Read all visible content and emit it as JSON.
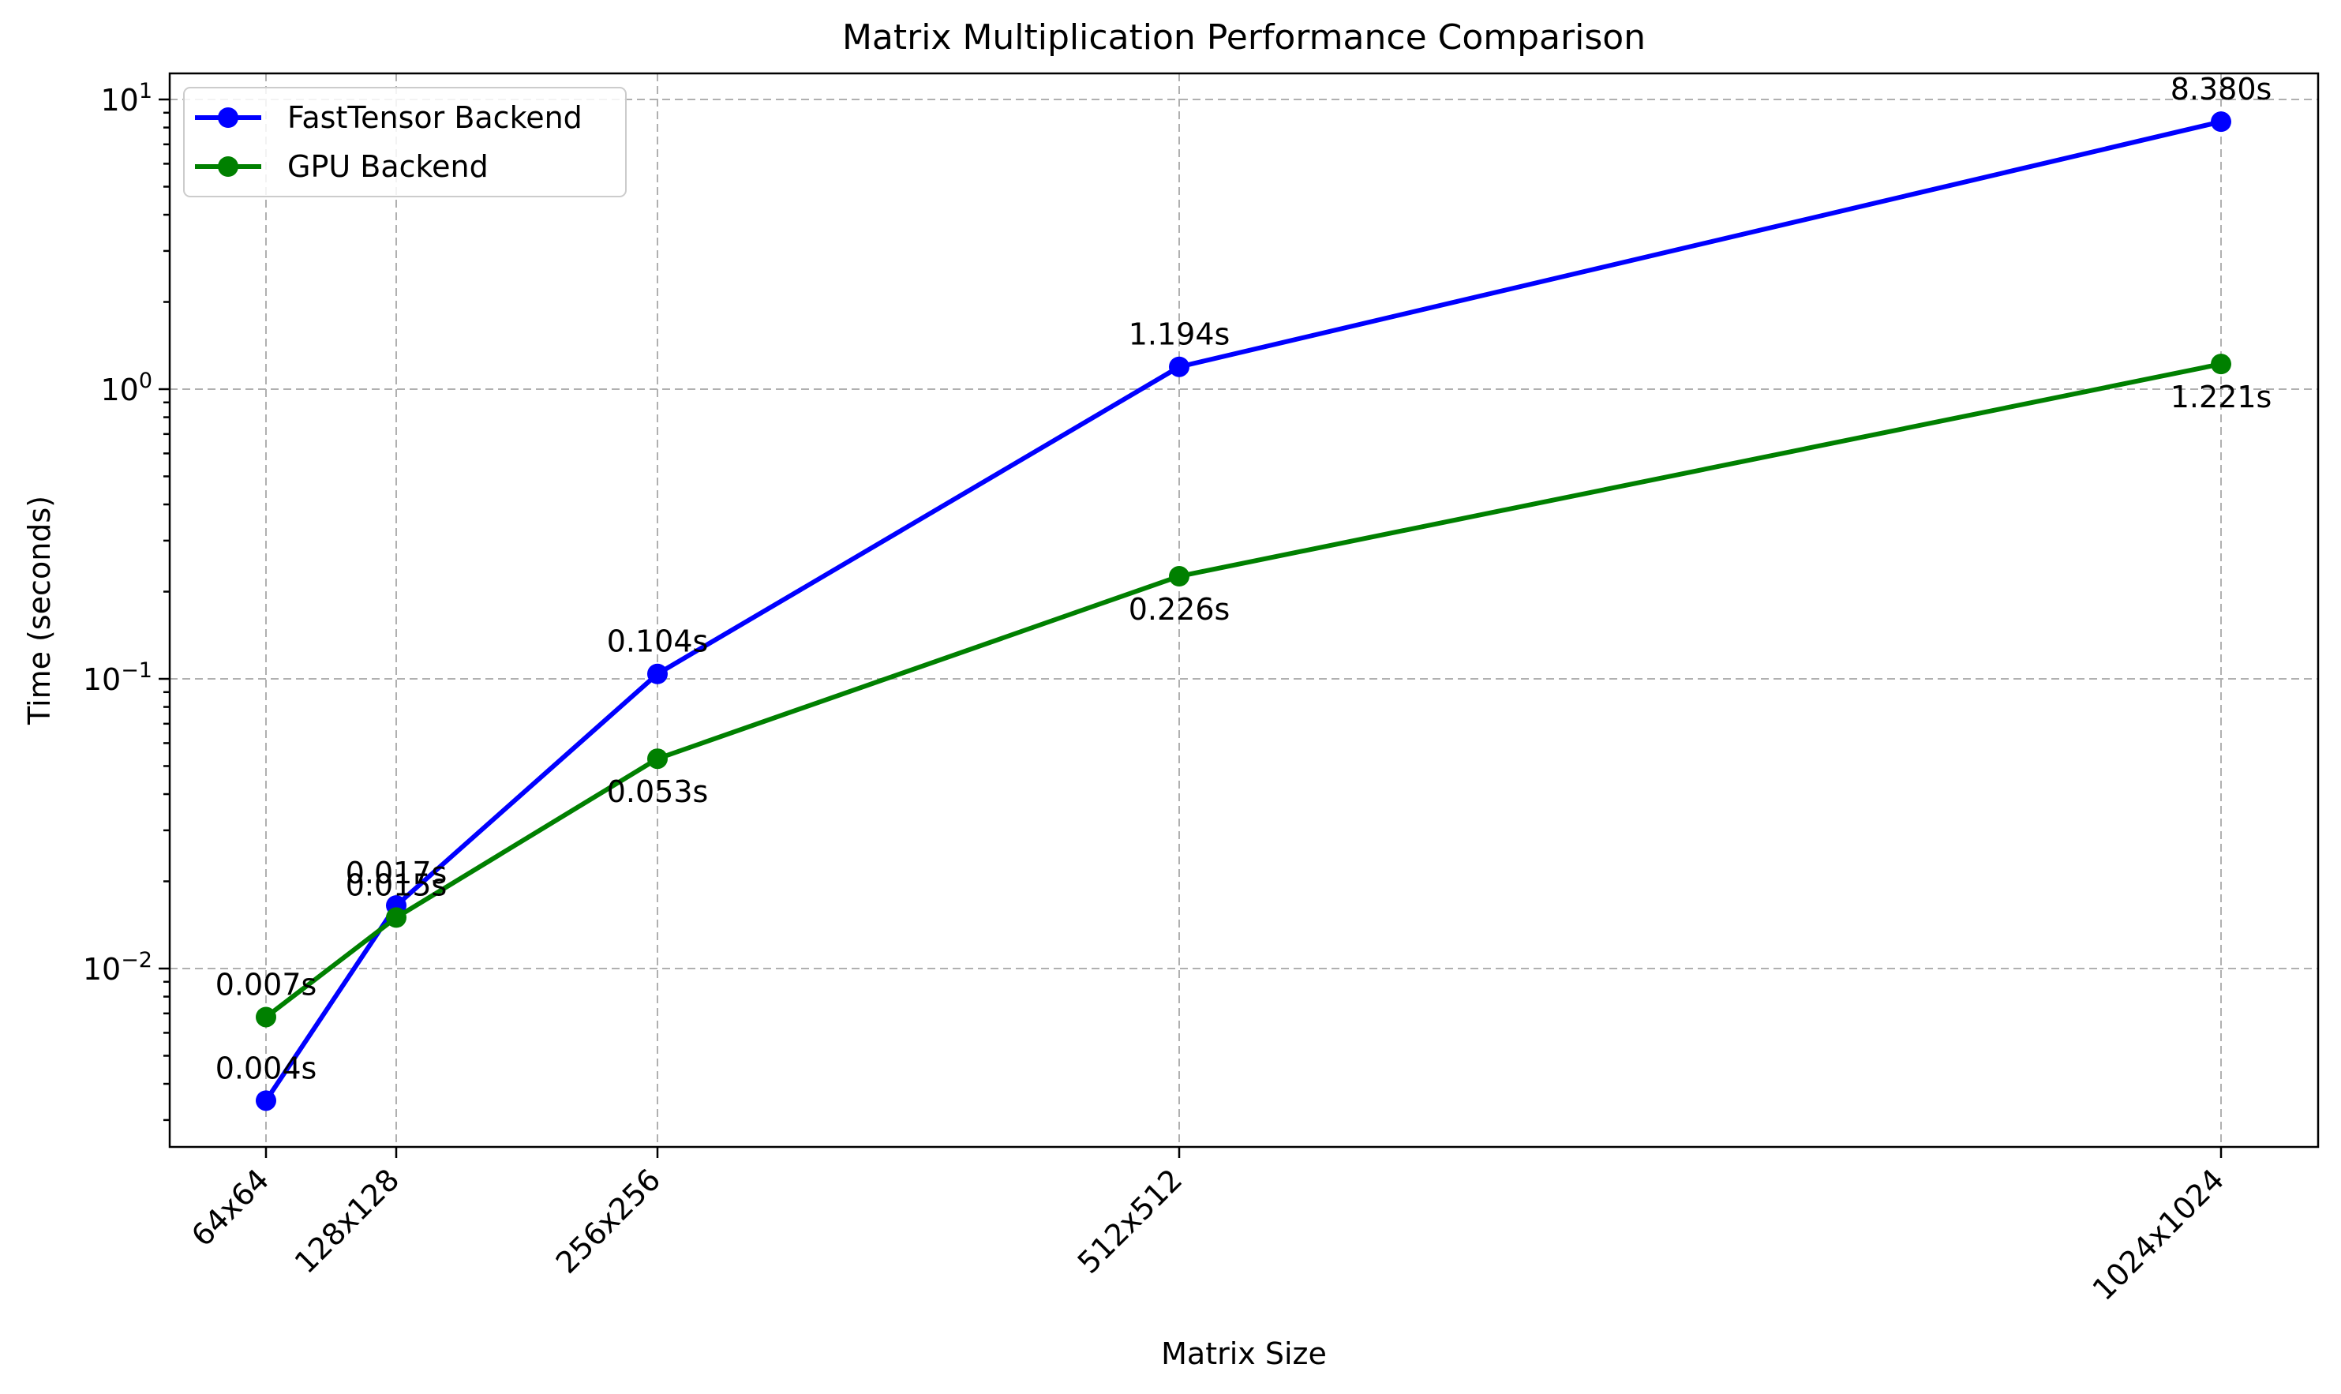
{
  "chart_data": {
    "type": "line",
    "title": "Matrix Multiplication Performance Comparison",
    "xlabel": "Matrix Size",
    "ylabel": "Time (seconds)",
    "yscale": "log",
    "ylim": [
      0.0025,
      12
    ],
    "grid": true,
    "legend_position": "top-left",
    "x": [
      64,
      128,
      256,
      512,
      1024
    ],
    "categories": [
      "64x64",
      "128x128",
      "256x256",
      "512x512",
      "1024x1024"
    ],
    "y_ticks": [
      {
        "value": 0.01,
        "base": "10",
        "exp": "−2"
      },
      {
        "value": 0.1,
        "base": "10",
        "exp": "−1"
      },
      {
        "value": 1,
        "base": "10",
        "exp": "0"
      },
      {
        "value": 10,
        "base": "10",
        "exp": "1"
      }
    ],
    "series": [
      {
        "name": "FastTensor Backend",
        "color": "#0000ff",
        "values": [
          0.0035,
          0.0165,
          0.104,
          1.194,
          8.38
        ],
        "labels": [
          "0.004s",
          "0.017s",
          "0.104s",
          "1.194s",
          "8.380s"
        ],
        "label_position": "above"
      },
      {
        "name": "GPU Backend",
        "color": "#008000",
        "values": [
          0.0068,
          0.015,
          0.053,
          0.226,
          1.221
        ],
        "labels": [
          "0.007s",
          "0.015s",
          "0.053s",
          "0.226s",
          "1.221s"
        ],
        "label_position": "mixed"
      }
    ]
  }
}
